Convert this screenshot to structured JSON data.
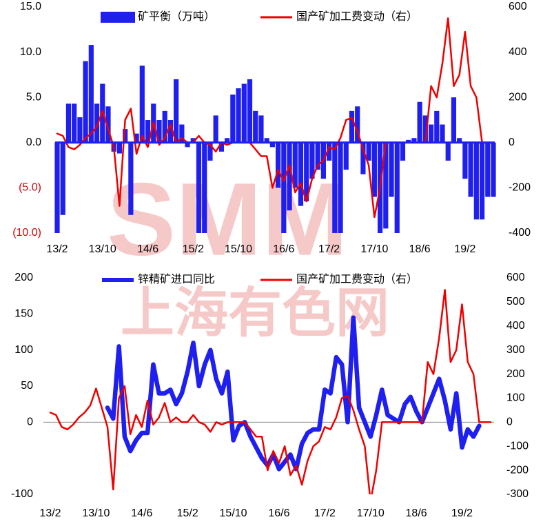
{
  "watermark": {
    "logo": "SMM",
    "name": "上海有色网"
  },
  "chart_data": [
    {
      "type": "bar",
      "categories": [
        "13/2",
        null,
        null,
        null,
        null,
        null,
        null,
        null,
        "13/10",
        null,
        null,
        null,
        null,
        null,
        null,
        null,
        "14/6",
        null,
        null,
        null,
        null,
        null,
        null,
        null,
        "15/2",
        null,
        null,
        null,
        null,
        null,
        null,
        null,
        "15/10",
        null,
        null,
        null,
        null,
        null,
        null,
        null,
        "16/6",
        null,
        null,
        null,
        null,
        null,
        null,
        null,
        "17/2",
        null,
        null,
        null,
        null,
        null,
        null,
        null,
        "17/10",
        null,
        null,
        null,
        null,
        null,
        null,
        null,
        "18/6",
        null,
        null,
        null,
        null,
        null,
        null,
        null,
        "19/2",
        null,
        null,
        null,
        null,
        null
      ],
      "series": [
        {
          "name": "矿平衡（万吨）",
          "color": "#1f1ff0",
          "values": [
            -10,
            -8,
            4.3,
            4.3,
            2.8,
            9,
            10.8,
            4.3,
            6.5,
            4,
            -1,
            -1.2,
            1.5,
            -8,
            1,
            8.5,
            2.5,
            4.3,
            2.5,
            3.5,
            2.5,
            7,
            2,
            -0.5,
            0.5,
            -10,
            -10,
            -2,
            3,
            -1,
            0.5,
            5.3,
            6,
            6.5,
            7,
            3.5,
            3,
            0.5,
            -0.5,
            -5,
            -10,
            -7.5,
            -5,
            -7,
            -6.5,
            -4,
            -3,
            -4,
            -2,
            -10,
            -10,
            -3,
            3.5,
            4,
            -3.5,
            -2,
            -6,
            -10,
            -9.5,
            -6,
            -10,
            -2,
            0.3,
            0.5,
            4.5,
            3,
            2,
            3.5,
            2,
            -2,
            5,
            0.5,
            -4,
            -6,
            -8.5,
            -8.5,
            -6,
            -6
          ]
        },
        {
          "name": "国产矿加工费变动（右）",
          "color": "#ee0000",
          "axis": "y2",
          "values": [
            40,
            30,
            -20,
            -30,
            -10,
            20,
            40,
            70,
            140,
            60,
            -20,
            -280,
            100,
            150,
            -50,
            30,
            -20,
            90,
            -10,
            20,
            80,
            0,
            20,
            0,
            0,
            30,
            0,
            -10,
            -40,
            0,
            -10,
            0,
            0,
            0,
            0,
            -30,
            -60,
            -60,
            -200,
            -120,
            -170,
            -100,
            -220,
            -180,
            -260,
            -160,
            -100,
            -80,
            -20,
            -30,
            20,
            100,
            110,
            50,
            -30,
            -100,
            -330,
            -200,
            0,
            0,
            0,
            0,
            0,
            0,
            0,
            0,
            250,
            200,
            350,
            550,
            250,
            300,
            490,
            250,
            200,
            0,
            0,
            0
          ]
        }
      ],
      "ylim": [
        -10,
        15
      ],
      "yticks": [
        {
          "value": 15,
          "label": "15.0"
        },
        {
          "value": 10,
          "label": "10.0"
        },
        {
          "value": 5,
          "label": "5.0"
        },
        {
          "value": 0,
          "label": "0.0"
        },
        {
          "value": -5,
          "label": "(5.0)"
        },
        {
          "value": -10,
          "label": "(10.0)"
        }
      ],
      "y2lim": [
        -400,
        600
      ],
      "y2ticks": [
        600,
        400,
        200,
        0,
        -200,
        -400
      ]
    },
    {
      "type": "line",
      "categories": [
        "13/2",
        null,
        null,
        null,
        null,
        null,
        null,
        null,
        "13/10",
        null,
        null,
        null,
        null,
        null,
        null,
        null,
        "14/6",
        null,
        null,
        null,
        null,
        null,
        null,
        null,
        "15/2",
        null,
        null,
        null,
        null,
        null,
        null,
        null,
        "15/10",
        null,
        null,
        null,
        null,
        null,
        null,
        null,
        "16/6",
        null,
        null,
        null,
        null,
        null,
        null,
        null,
        "17/2",
        null,
        null,
        null,
        null,
        null,
        null,
        null,
        "17/10",
        null,
        null,
        null,
        null,
        null,
        null,
        null,
        "18/6",
        null,
        null,
        null,
        null,
        null,
        null,
        null,
        "19/2",
        null,
        null,
        null,
        null,
        null
      ],
      "series": [
        {
          "name": "锌精矿进口同比",
          "color": "#1f1ff0",
          "values": [
            null,
            null,
            null,
            null,
            null,
            null,
            null,
            null,
            null,
            null,
            20,
            5,
            105,
            -20,
            -40,
            -25,
            -15,
            -15,
            80,
            40,
            40,
            45,
            25,
            40,
            70,
            110,
            50,
            80,
            100,
            60,
            40,
            70,
            -25,
            -5,
            0,
            -20,
            -35,
            -50,
            -60,
            -45,
            -65,
            -55,
            -45,
            -65,
            -30,
            -15,
            -10,
            -10,
            45,
            40,
            90,
            80,
            0,
            145,
            20,
            0,
            -20,
            10,
            45,
            10,
            5,
            0,
            25,
            35,
            15,
            0,
            20,
            40,
            60,
            30,
            -10,
            40,
            -35,
            -10,
            -20,
            -5,
            null,
            null
          ]
        },
        {
          "name": "国产矿加工费变动（右）",
          "color": "#ee0000",
          "axis": "y2",
          "values": [
            40,
            30,
            -20,
            -30,
            -10,
            20,
            40,
            70,
            140,
            60,
            -20,
            -280,
            100,
            150,
            -50,
            30,
            -20,
            90,
            -10,
            20,
            80,
            0,
            20,
            0,
            0,
            30,
            0,
            -10,
            -40,
            0,
            -10,
            0,
            0,
            0,
            0,
            -30,
            -60,
            -60,
            -200,
            -120,
            -170,
            -100,
            -220,
            -180,
            -260,
            -160,
            -100,
            -80,
            -20,
            -30,
            20,
            100,
            110,
            50,
            -30,
            -100,
            -330,
            -200,
            0,
            0,
            0,
            0,
            0,
            0,
            0,
            0,
            250,
            200,
            350,
            550,
            250,
            300,
            490,
            250,
            200,
            0,
            0,
            0
          ]
        }
      ],
      "ylim": [
        -100,
        200
      ],
      "yticks": [
        200,
        150,
        100,
        50,
        0,
        -100
      ],
      "y2lim": [
        -300,
        600
      ],
      "y2ticks": [
        600,
        500,
        400,
        300,
        200,
        100,
        0,
        -100,
        -200,
        -300
      ]
    }
  ]
}
